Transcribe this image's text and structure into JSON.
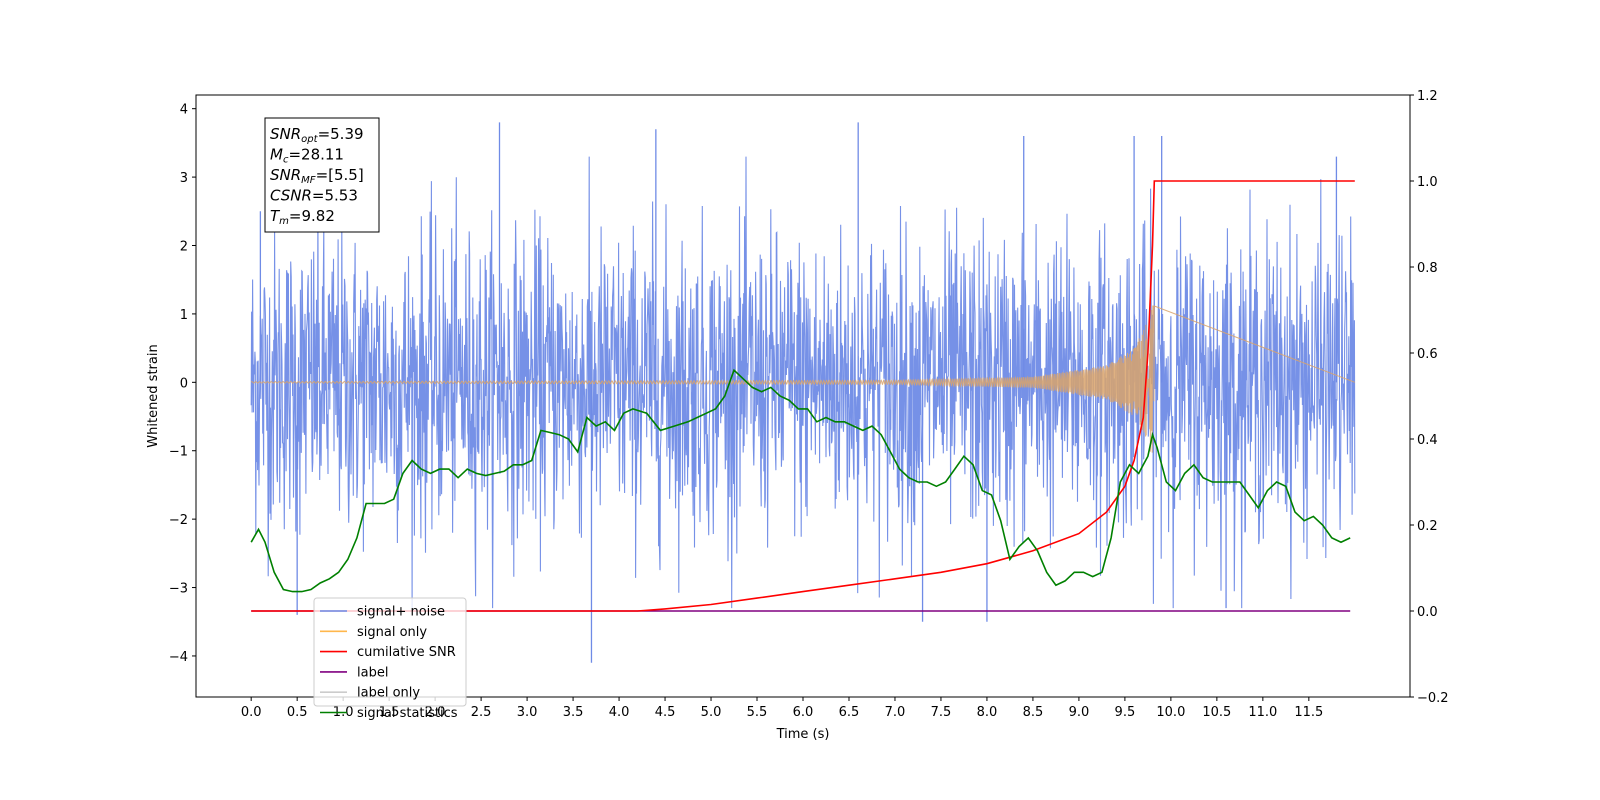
{
  "chart_data": {
    "type": "line",
    "xlabel": "Time (s)",
    "ylabel": "Whitened strain",
    "xlim": [
      -0.6,
      12.6
    ],
    "ylim": [
      -4.6,
      4.2
    ],
    "y2lim": [
      -0.2,
      1.2
    ],
    "x_ticks": [
      "0.0",
      "0.5",
      "1.0",
      "1.5",
      "2.0",
      "2.5",
      "3.0",
      "3.5",
      "4.0",
      "4.5",
      "5.0",
      "5.5",
      "6.0",
      "6.5",
      "7.0",
      "7.5",
      "8.0",
      "8.5",
      "9.0",
      "9.5",
      "10.0",
      "10.5",
      "11.0",
      "11.5"
    ],
    "y_ticks": [
      "4",
      "3",
      "2",
      "1",
      "0",
      "−1",
      "−2",
      "−3",
      "−4"
    ],
    "y2_ticks": [
      "1.2",
      "1.0",
      "0.8",
      "0.6",
      "0.4",
      "0.2",
      "0.0",
      "−0.2"
    ],
    "info_box": [
      {
        "base": "SNR",
        "sub": "opt",
        "rest": "=5.39"
      },
      {
        "base": "M",
        "sub": "c",
        "rest": "=28.11"
      },
      {
        "base": "SNR",
        "sub": "MF",
        "rest": "=[5.5]"
      },
      {
        "base": "CSNR",
        "sub": "",
        "rest": "=5.53"
      },
      {
        "base": "T",
        "sub": "m",
        "rest": "=9.82"
      }
    ],
    "legend": {
      "placement": "lower-left",
      "entries": [
        {
          "label": "signal+ noise",
          "color": "#6f8be6"
        },
        {
          "label": "signal only",
          "color": "#ffb74d"
        },
        {
          "label": "cumilative SNR",
          "color": "#ff0000"
        },
        {
          "label": "label",
          "color": "#800080"
        },
        {
          "label": "label only",
          "color": "#cccccc"
        },
        {
          "label": "signal statistics",
          "color": "#008000"
        }
      ]
    },
    "series": [
      {
        "name": "signal+ noise",
        "axis": "left",
        "color": "#6f8be6",
        "description_kind": "whitened noise band",
        "x_range": [
          0.0,
          12.0
        ],
        "typical_amplitude": 1.8,
        "notable_peaks": [
          {
            "x": 0.1,
            "y": 2.5
          },
          {
            "x": 0.5,
            "y": -3.4
          },
          {
            "x": 2.7,
            "y": 3.8
          },
          {
            "x": 3.7,
            "y": -4.1
          },
          {
            "x": 4.4,
            "y": 3.7
          },
          {
            "x": 6.6,
            "y": 3.8
          },
          {
            "x": 7.3,
            "y": -3.5
          },
          {
            "x": 8.0,
            "y": -3.5
          },
          {
            "x": 8.4,
            "y": 3.6
          },
          {
            "x": 9.6,
            "y": 3.6
          },
          {
            "x": 9.9,
            "y": 3.6
          },
          {
            "x": 10.6,
            "y": -3.3
          },
          {
            "x": 11.8,
            "y": 3.3
          }
        ]
      },
      {
        "name": "signal only",
        "axis": "left",
        "color": "#d9a36b",
        "description_kind": "chirp",
        "x_range": [
          0.0,
          9.82
        ],
        "amplitude_points": [
          [
            0.0,
            0.01
          ],
          [
            7.0,
            0.03
          ],
          [
            8.5,
            0.08
          ],
          [
            9.3,
            0.25
          ],
          [
            9.6,
            0.5
          ],
          [
            9.75,
            0.9
          ],
          [
            9.82,
            1.2
          ]
        ]
      },
      {
        "name": "cumilative SNR",
        "axis": "right",
        "color": "#ff0000",
        "x": [
          0.0,
          4.2,
          4.5,
          5.0,
          5.5,
          6.0,
          6.5,
          7.0,
          7.5,
          8.0,
          8.5,
          9.0,
          9.3,
          9.5,
          9.6,
          9.7,
          9.75,
          9.8,
          9.82,
          10.0,
          12.0
        ],
        "values": [
          0.0,
          0.0,
          0.005,
          0.015,
          0.03,
          0.045,
          0.06,
          0.075,
          0.09,
          0.11,
          0.14,
          0.18,
          0.23,
          0.29,
          0.35,
          0.45,
          0.6,
          0.85,
          1.0,
          1.0,
          1.0
        ]
      },
      {
        "name": "label",
        "axis": "right",
        "color": "#800080",
        "x": [
          0.0,
          11.95
        ],
        "values": [
          0.0,
          0.0
        ]
      },
      {
        "name": "signal statistics",
        "axis": "right",
        "color": "#008000",
        "x": [
          0.0,
          0.08,
          0.15,
          0.25,
          0.35,
          0.45,
          0.55,
          0.65,
          0.75,
          0.85,
          0.95,
          1.05,
          1.15,
          1.25,
          1.35,
          1.45,
          1.55,
          1.65,
          1.75,
          1.85,
          1.95,
          2.05,
          2.15,
          2.25,
          2.35,
          2.45,
          2.55,
          2.65,
          2.75,
          2.85,
          2.95,
          3.05,
          3.15,
          3.25,
          3.35,
          3.45,
          3.55,
          3.65,
          3.75,
          3.85,
          3.95,
          4.05,
          4.15,
          4.3,
          4.45,
          4.6,
          4.75,
          4.85,
          4.95,
          5.05,
          5.15,
          5.25,
          5.35,
          5.45,
          5.55,
          5.65,
          5.75,
          5.85,
          5.95,
          6.05,
          6.15,
          6.25,
          6.35,
          6.45,
          6.55,
          6.65,
          6.75,
          6.85,
          6.95,
          7.05,
          7.15,
          7.25,
          7.35,
          7.45,
          7.55,
          7.65,
          7.75,
          7.85,
          7.95,
          8.05,
          8.15,
          8.25,
          8.35,
          8.45,
          8.55,
          8.65,
          8.75,
          8.85,
          8.95,
          9.05,
          9.15,
          9.25,
          9.35,
          9.45,
          9.55,
          9.65,
          9.75,
          9.8,
          9.85,
          9.95,
          10.05,
          10.15,
          10.25,
          10.35,
          10.45,
          10.55,
          10.65,
          10.75,
          10.85,
          10.95,
          11.05,
          11.15,
          11.25,
          11.35,
          11.45,
          11.55,
          11.65,
          11.75,
          11.85,
          11.95
        ],
        "values": [
          0.16,
          0.19,
          0.16,
          0.09,
          0.05,
          0.045,
          0.045,
          0.05,
          0.065,
          0.075,
          0.09,
          0.12,
          0.17,
          0.25,
          0.25,
          0.25,
          0.26,
          0.32,
          0.35,
          0.33,
          0.32,
          0.33,
          0.33,
          0.31,
          0.33,
          0.32,
          0.315,
          0.32,
          0.325,
          0.34,
          0.34,
          0.35,
          0.42,
          0.415,
          0.41,
          0.4,
          0.37,
          0.45,
          0.43,
          0.44,
          0.42,
          0.46,
          0.47,
          0.46,
          0.42,
          0.43,
          0.44,
          0.45,
          0.46,
          0.47,
          0.5,
          0.56,
          0.54,
          0.52,
          0.51,
          0.52,
          0.5,
          0.49,
          0.47,
          0.47,
          0.44,
          0.45,
          0.44,
          0.44,
          0.43,
          0.42,
          0.43,
          0.41,
          0.37,
          0.33,
          0.31,
          0.3,
          0.3,
          0.29,
          0.3,
          0.33,
          0.36,
          0.34,
          0.28,
          0.27,
          0.21,
          0.12,
          0.15,
          0.17,
          0.14,
          0.09,
          0.06,
          0.07,
          0.09,
          0.09,
          0.08,
          0.09,
          0.17,
          0.3,
          0.34,
          0.32,
          0.36,
          0.41,
          0.38,
          0.3,
          0.28,
          0.32,
          0.34,
          0.31,
          0.3,
          0.3,
          0.3,
          0.3,
          0.27,
          0.24,
          0.28,
          0.3,
          0.29,
          0.23,
          0.21,
          0.22,
          0.2,
          0.17,
          0.16,
          0.17
        ]
      }
    ]
  }
}
